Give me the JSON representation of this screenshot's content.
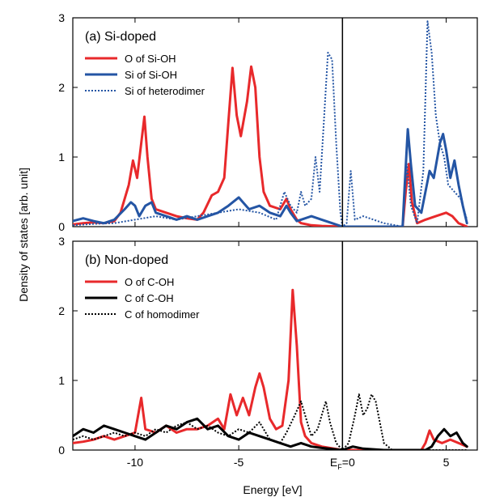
{
  "chart_data": [
    {
      "type": "line",
      "panel_label": "(a) Si-doped",
      "xlim": [
        -13,
        6.5
      ],
      "ylim": [
        0,
        3
      ],
      "xticks": [
        -10,
        -5,
        0,
        5
      ],
      "yticks": [
        0,
        1,
        2,
        3
      ],
      "ylabel": "Density of states [arb. unit]",
      "vertical_line_x": 0,
      "legend_position": "top-left",
      "series": [
        {
          "name": "O of Si-OH",
          "color": "#e8292b",
          "dash": "solid",
          "points": [
            [
              -13,
              0.03
            ],
            [
              -12.5,
              0.05
            ],
            [
              -12,
              0.06
            ],
            [
              -11.5,
              0.05
            ],
            [
              -11,
              0.08
            ],
            [
              -10.7,
              0.2
            ],
            [
              -10.3,
              0.6
            ],
            [
              -10.1,
              0.95
            ],
            [
              -9.9,
              0.7
            ],
            [
              -9.7,
              1.2
            ],
            [
              -9.55,
              1.58
            ],
            [
              -9.4,
              1.0
            ],
            [
              -9.2,
              0.4
            ],
            [
              -9,
              0.25
            ],
            [
              -8.5,
              0.2
            ],
            [
              -8,
              0.15
            ],
            [
              -7.5,
              0.12
            ],
            [
              -7,
              0.1
            ],
            [
              -6.7,
              0.2
            ],
            [
              -6.3,
              0.45
            ],
            [
              -6,
              0.5
            ],
            [
              -5.7,
              0.7
            ],
            [
              -5.5,
              1.5
            ],
            [
              -5.3,
              2.28
            ],
            [
              -5.1,
              1.6
            ],
            [
              -4.9,
              1.3
            ],
            [
              -4.6,
              1.8
            ],
            [
              -4.4,
              2.3
            ],
            [
              -4.2,
              2.0
            ],
            [
              -4,
              1.0
            ],
            [
              -3.8,
              0.5
            ],
            [
              -3.5,
              0.3
            ],
            [
              -3,
              0.25
            ],
            [
              -2.7,
              0.4
            ],
            [
              -2.5,
              0.25
            ],
            [
              -2.2,
              0.1
            ],
            [
              -2,
              0.05
            ],
            [
              -1.5,
              0.02
            ],
            [
              -1,
              0.01
            ],
            [
              0,
              0
            ],
            [
              2.9,
              0
            ],
            [
              3.05,
              0.5
            ],
            [
              3.2,
              0.9
            ],
            [
              3.35,
              0.35
            ],
            [
              3.6,
              0.05
            ],
            [
              4,
              0.1
            ],
            [
              4.5,
              0.15
            ],
            [
              5,
              0.2
            ],
            [
              5.3,
              0.15
            ],
            [
              5.6,
              0.05
            ],
            [
              6,
              0
            ]
          ]
        },
        {
          "name": "Si of Si-OH",
          "color": "#2455a4",
          "dash": "solid",
          "points": [
            [
              -13,
              0.08
            ],
            [
              -12.5,
              0.12
            ],
            [
              -12,
              0.08
            ],
            [
              -11.5,
              0.05
            ],
            [
              -11,
              0.1
            ],
            [
              -10.5,
              0.25
            ],
            [
              -10.2,
              0.35
            ],
            [
              -10,
              0.3
            ],
            [
              -9.8,
              0.15
            ],
            [
              -9.5,
              0.3
            ],
            [
              -9.2,
              0.35
            ],
            [
              -9,
              0.2
            ],
            [
              -8.5,
              0.15
            ],
            [
              -8,
              0.1
            ],
            [
              -7.5,
              0.15
            ],
            [
              -7,
              0.1
            ],
            [
              -6.5,
              0.15
            ],
            [
              -6,
              0.2
            ],
            [
              -5.5,
              0.3
            ],
            [
              -5,
              0.42
            ],
            [
              -4.8,
              0.35
            ],
            [
              -4.5,
              0.25
            ],
            [
              -4,
              0.3
            ],
            [
              -3.5,
              0.2
            ],
            [
              -3,
              0.15
            ],
            [
              -2.7,
              0.3
            ],
            [
              -2.5,
              0.2
            ],
            [
              -2.2,
              0.08
            ],
            [
              -2,
              0.1
            ],
            [
              -1.5,
              0.15
            ],
            [
              -1,
              0.1
            ],
            [
              -0.5,
              0.05
            ],
            [
              0,
              0
            ],
            [
              2.9,
              0
            ],
            [
              3,
              0.6
            ],
            [
              3.15,
              1.4
            ],
            [
              3.3,
              0.9
            ],
            [
              3.5,
              0.3
            ],
            [
              3.8,
              0.2
            ],
            [
              4,
              0.5
            ],
            [
              4.2,
              0.8
            ],
            [
              4.4,
              0.7
            ],
            [
              4.7,
              1.2
            ],
            [
              4.85,
              1.33
            ],
            [
              5,
              1.1
            ],
            [
              5.2,
              0.7
            ],
            [
              5.4,
              0.95
            ],
            [
              5.6,
              0.6
            ],
            [
              5.8,
              0.3
            ],
            [
              6,
              0.05
            ]
          ]
        },
        {
          "name": "Si of heterodimer",
          "color": "#2455a4",
          "dash": "dotted",
          "points": [
            [
              -13,
              0.02
            ],
            [
              -12,
              0.04
            ],
            [
              -11,
              0.05
            ],
            [
              -10,
              0.1
            ],
            [
              -9,
              0.15
            ],
            [
              -8,
              0.1
            ],
            [
              -7,
              0.15
            ],
            [
              -6,
              0.2
            ],
            [
              -5,
              0.25
            ],
            [
              -4,
              0.2
            ],
            [
              -3.2,
              0.1
            ],
            [
              -2.8,
              0.5
            ],
            [
              -2.5,
              0.3
            ],
            [
              -2.2,
              0.2
            ],
            [
              -2,
              0.5
            ],
            [
              -1.8,
              0.3
            ],
            [
              -1.5,
              0.4
            ],
            [
              -1.3,
              1.0
            ],
            [
              -1.1,
              0.5
            ],
            [
              -0.9,
              1.5
            ],
            [
              -0.7,
              2.5
            ],
            [
              -0.5,
              2.4
            ],
            [
              -0.3,
              1.2
            ],
            [
              -0.1,
              0.2
            ],
            [
              0,
              0
            ],
            [
              0.2,
              0.05
            ],
            [
              0.4,
              0.8
            ],
            [
              0.6,
              0.1
            ],
            [
              1,
              0.15
            ],
            [
              1.5,
              0.1
            ],
            [
              2,
              0.05
            ],
            [
              2.9,
              0
            ],
            [
              3.1,
              0.9
            ],
            [
              3.3,
              0.3
            ],
            [
              3.6,
              0.05
            ],
            [
              3.9,
              0.8
            ],
            [
              4.1,
              2.95
            ],
            [
              4.3,
              2.5
            ],
            [
              4.5,
              1.6
            ],
            [
              4.7,
              1.2
            ],
            [
              4.9,
              1.0
            ],
            [
              5.1,
              0.6
            ],
            [
              5.4,
              0.5
            ],
            [
              5.7,
              0.4
            ],
            [
              6,
              0.1
            ]
          ]
        }
      ]
    },
    {
      "type": "line",
      "panel_label": "(b) Non-doped",
      "xlim": [
        -13,
        6.5
      ],
      "ylim": [
        0,
        3
      ],
      "xticks": [
        -10,
        -5,
        0,
        5
      ],
      "yticks": [
        0,
        1,
        2,
        3
      ],
      "xtick_labels": [
        "-10",
        "-5",
        "EF=0",
        "5"
      ],
      "xlabel": "Energy [eV]",
      "vertical_line_x": 0,
      "legend_position": "top-left",
      "series": [
        {
          "name": "O of C-OH",
          "color": "#e8292b",
          "dash": "solid",
          "points": [
            [
              -13,
              0.1
            ],
            [
              -12.5,
              0.12
            ],
            [
              -12,
              0.15
            ],
            [
              -11.5,
              0.2
            ],
            [
              -11,
              0.15
            ],
            [
              -10.5,
              0.2
            ],
            [
              -10,
              0.25
            ],
            [
              -9.7,
              0.75
            ],
            [
              -9.5,
              0.3
            ],
            [
              -9,
              0.25
            ],
            [
              -8.5,
              0.35
            ],
            [
              -8,
              0.25
            ],
            [
              -7.5,
              0.3
            ],
            [
              -7,
              0.3
            ],
            [
              -6.5,
              0.35
            ],
            [
              -6,
              0.45
            ],
            [
              -5.7,
              0.3
            ],
            [
              -5.4,
              0.8
            ],
            [
              -5.1,
              0.5
            ],
            [
              -4.8,
              0.75
            ],
            [
              -4.5,
              0.5
            ],
            [
              -4.2,
              0.9
            ],
            [
              -4,
              1.1
            ],
            [
              -3.8,
              0.9
            ],
            [
              -3.5,
              0.45
            ],
            [
              -3.2,
              0.3
            ],
            [
              -2.9,
              0.35
            ],
            [
              -2.6,
              1.0
            ],
            [
              -2.4,
              2.3
            ],
            [
              -2.2,
              1.5
            ],
            [
              -2,
              0.4
            ],
            [
              -1.8,
              0.2
            ],
            [
              -1.5,
              0.1
            ],
            [
              -1,
              0.05
            ],
            [
              0,
              0
            ],
            [
              3.8,
              0
            ],
            [
              4,
              0.1
            ],
            [
              4.2,
              0.28
            ],
            [
              4.4,
              0.15
            ],
            [
              4.8,
              0.1
            ],
            [
              5.2,
              0.15
            ],
            [
              5.6,
              0.1
            ],
            [
              6,
              0.05
            ]
          ]
        },
        {
          "name": "C of C-OH",
          "color": "#000000",
          "dash": "solid",
          "points": [
            [
              -13,
              0.2
            ],
            [
              -12.5,
              0.3
            ],
            [
              -12,
              0.25
            ],
            [
              -11.5,
              0.35
            ],
            [
              -11,
              0.3
            ],
            [
              -10.5,
              0.25
            ],
            [
              -10,
              0.2
            ],
            [
              -9.5,
              0.15
            ],
            [
              -9,
              0.25
            ],
            [
              -8.5,
              0.35
            ],
            [
              -8,
              0.3
            ],
            [
              -7.5,
              0.4
            ],
            [
              -7,
              0.45
            ],
            [
              -6.5,
              0.3
            ],
            [
              -6,
              0.35
            ],
            [
              -5.5,
              0.2
            ],
            [
              -5,
              0.15
            ],
            [
              -4.5,
              0.25
            ],
            [
              -4,
              0.2
            ],
            [
              -3.5,
              0.15
            ],
            [
              -3,
              0.1
            ],
            [
              -2.5,
              0.05
            ],
            [
              -2,
              0.1
            ],
            [
              -1.5,
              0.05
            ],
            [
              -1,
              0.03
            ],
            [
              0,
              0
            ],
            [
              0.5,
              0.05
            ],
            [
              1,
              0.02
            ],
            [
              2,
              0
            ],
            [
              4,
              0
            ],
            [
              4.3,
              0.05
            ],
            [
              4.6,
              0.2
            ],
            [
              4.9,
              0.3
            ],
            [
              5.2,
              0.2
            ],
            [
              5.5,
              0.25
            ],
            [
              5.8,
              0.1
            ],
            [
              6,
              0.05
            ]
          ]
        },
        {
          "name": "C of homodimer",
          "color": "#000000",
          "dash": "dotted",
          "points": [
            [
              -13,
              0.15
            ],
            [
              -12.5,
              0.2
            ],
            [
              -12,
              0.15
            ],
            [
              -11.5,
              0.2
            ],
            [
              -11,
              0.25
            ],
            [
              -10.5,
              0.2
            ],
            [
              -10,
              0.25
            ],
            [
              -9.5,
              0.2
            ],
            [
              -9,
              0.3
            ],
            [
              -8.5,
              0.25
            ],
            [
              -8,
              0.35
            ],
            [
              -7.5,
              0.4
            ],
            [
              -7,
              0.3
            ],
            [
              -6.5,
              0.35
            ],
            [
              -6,
              0.25
            ],
            [
              -5.5,
              0.2
            ],
            [
              -5,
              0.3
            ],
            [
              -4.5,
              0.25
            ],
            [
              -4,
              0.4
            ],
            [
              -3.5,
              0.15
            ],
            [
              -3,
              0.1
            ],
            [
              -2.7,
              0.25
            ],
            [
              -2.3,
              0.5
            ],
            [
              -2,
              0.7
            ],
            [
              -1.8,
              0.5
            ],
            [
              -1.5,
              0.2
            ],
            [
              -1.2,
              0.3
            ],
            [
              -1,
              0.5
            ],
            [
              -0.8,
              0.7
            ],
            [
              -0.6,
              0.4
            ],
            [
              -0.3,
              0.1
            ],
            [
              0,
              0
            ],
            [
              0.3,
              0.1
            ],
            [
              0.6,
              0.5
            ],
            [
              0.8,
              0.8
            ],
            [
              1,
              0.5
            ],
            [
              1.2,
              0.6
            ],
            [
              1.4,
              0.8
            ],
            [
              1.6,
              0.7
            ],
            [
              1.8,
              0.4
            ],
            [
              2,
              0.1
            ],
            [
              2.4,
              0
            ],
            [
              6,
              0
            ]
          ]
        }
      ]
    }
  ]
}
